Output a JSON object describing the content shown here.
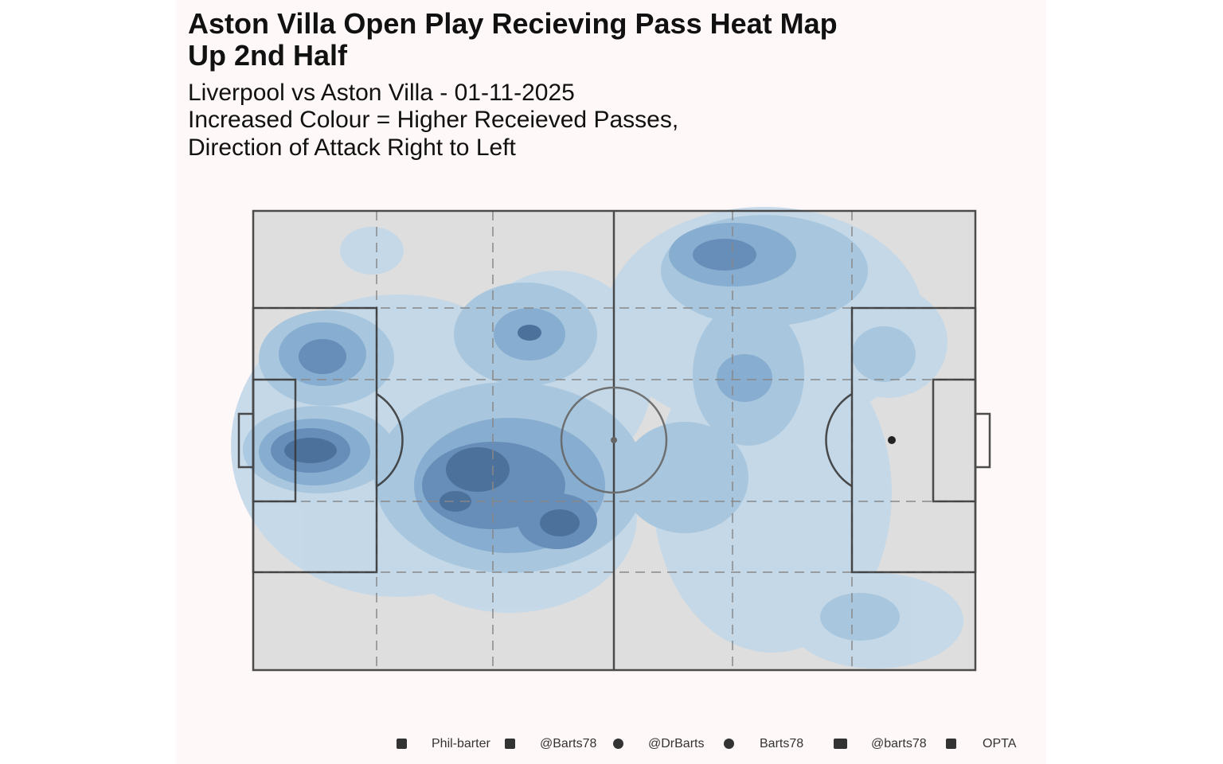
{
  "chart_data": {
    "type": "density",
    "title": [
      "Aston Villa Open Play Recieving Pass Heat Map",
      "Up 2nd Half"
    ],
    "subtitle": [
      "Liverpool vs Aston Villa - 01-11-2025",
      "Increased Colour = Higher Receieved Passes,",
      "Direction of Attack Right to Left"
    ],
    "caption": [
      "Phil-barter",
      "@Barts78",
      "@DrBarts",
      "Barts78",
      "@barts78",
      "OPTA"
    ]
  }
}
